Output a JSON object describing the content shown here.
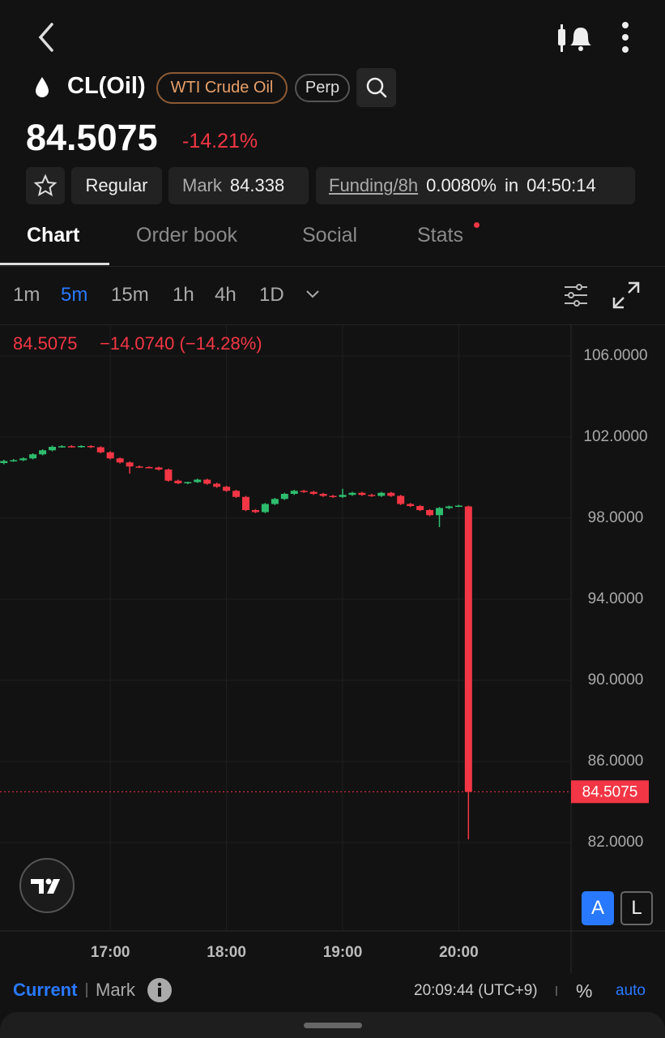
{
  "top": {
    "symbol": "CL(Oil)",
    "name": "WTI Crude Oil",
    "tag": "Perp",
    "price": "84.5075",
    "change": "-14.21%"
  },
  "info": {
    "session": "Regular",
    "mark_label": "Mark",
    "mark_value": "84.338",
    "funding_label": "Funding/8h",
    "funding_value": "0.0080%",
    "in": "in",
    "countdown": "04:50:14"
  },
  "tabs": [
    "Chart",
    "Order book",
    "Social",
    "Stats"
  ],
  "intervals": [
    "1m",
    "5m",
    "15m",
    "1h",
    "4h",
    "1D"
  ],
  "scale_buttons": [
    "A",
    "L"
  ],
  "footer": {
    "current": "Current",
    "mark": "Mark",
    "time": "20:09:44 (UTC+9)",
    "percent": "%",
    "auto": "auto"
  },
  "chart_data": {
    "type": "candlestick",
    "legend": {
      "price": "84.5075",
      "change": "−14.0740 (−14.28%)"
    },
    "up_color": "#2ebd6e",
    "down_color": "#f23645",
    "grid": true,
    "last_price": 84.5075,
    "last_price_color": "#f23645",
    "x": [
      "16:05",
      "16:10",
      "16:15",
      "16:20",
      "16:25",
      "16:30",
      "16:35",
      "16:40",
      "16:45",
      "16:50",
      "16:55",
      "17:00",
      "17:05",
      "17:10",
      "17:15",
      "17:20",
      "17:25",
      "17:30",
      "17:35",
      "17:40",
      "17:45",
      "17:50",
      "17:55",
      "18:00",
      "18:05",
      "18:10",
      "18:15",
      "18:20",
      "18:25",
      "18:30",
      "18:35",
      "18:40",
      "18:45",
      "18:50",
      "18:55",
      "19:00",
      "19:05",
      "19:10",
      "19:15",
      "19:20",
      "19:25",
      "19:30",
      "19:35",
      "19:40",
      "19:45",
      "19:50",
      "19:55",
      "20:00",
      "20:05"
    ],
    "open": [
      100.72,
      100.82,
      100.86,
      100.95,
      101.15,
      101.35,
      101.52,
      101.55,
      101.52,
      101.56,
      101.5,
      101.25,
      100.95,
      100.75,
      100.55,
      100.52,
      100.5,
      100.4,
      99.85,
      99.72,
      99.78,
      99.9,
      99.7,
      99.55,
      99.35,
      99.05,
      98.4,
      98.3,
      98.7,
      98.95,
      99.2,
      99.35,
      99.3,
      99.2,
      99.1,
      99.05,
      99.15,
      99.25,
      99.15,
      99.1,
      99.25,
      99.1,
      98.7,
      98.6,
      98.4,
      98.15,
      98.5,
      98.58,
      98.58
    ],
    "high": [
      100.88,
      100.92,
      101.0,
      101.2,
      101.4,
      101.58,
      101.6,
      101.6,
      101.6,
      101.6,
      101.55,
      101.3,
      101.0,
      100.8,
      100.6,
      100.56,
      100.54,
      100.45,
      99.9,
      99.8,
      99.95,
      99.95,
      99.75,
      99.6,
      99.4,
      99.1,
      98.45,
      98.75,
      99.0,
      99.25,
      99.4,
      99.4,
      99.35,
      99.25,
      99.15,
      99.45,
      99.3,
      99.3,
      99.2,
      99.3,
      99.3,
      99.15,
      98.75,
      98.65,
      98.45,
      98.55,
      98.62,
      98.66,
      98.62
    ],
    "low": [
      100.66,
      100.78,
      100.82,
      100.9,
      101.1,
      101.3,
      101.48,
      101.48,
      101.48,
      101.46,
      101.2,
      100.9,
      100.7,
      100.2,
      100.48,
      100.46,
      100.35,
      99.8,
      99.68,
      99.68,
      99.74,
      99.65,
      99.5,
      99.3,
      99.0,
      98.35,
      98.25,
      98.25,
      98.65,
      98.9,
      99.15,
      99.25,
      99.15,
      99.05,
      99.0,
      99.0,
      99.1,
      99.1,
      99.05,
      99.05,
      99.05,
      98.65,
      98.55,
      98.35,
      98.1,
      97.56,
      98.45,
      98.55,
      82.16
    ],
    "close": [
      100.82,
      100.86,
      100.95,
      101.15,
      101.35,
      101.52,
      101.55,
      101.52,
      101.56,
      101.5,
      101.25,
      100.95,
      100.75,
      100.55,
      100.52,
      100.5,
      100.4,
      99.85,
      99.72,
      99.78,
      99.9,
      99.7,
      99.55,
      99.35,
      99.05,
      98.4,
      98.3,
      98.7,
      98.95,
      99.2,
      99.35,
      99.3,
      99.2,
      99.1,
      99.05,
      99.15,
      99.25,
      99.15,
      99.1,
      99.25,
      99.1,
      98.7,
      98.6,
      98.4,
      98.15,
      98.5,
      98.58,
      98.62,
      84.5075
    ],
    "xlim": [
      "16:03",
      "20:58"
    ],
    "xticks": [
      "17:00",
      "18:00",
      "19:00",
      "20:00"
    ],
    "ylim": [
      77.64,
      107.56
    ],
    "yticks": [
      {
        "value": 82,
        "label": "82.0000"
      },
      {
        "value": 86,
        "label": "86.0000"
      },
      {
        "value": 90,
        "label": "90.0000"
      },
      {
        "value": 94,
        "label": "94.0000"
      },
      {
        "value": 98,
        "label": "98.0000"
      },
      {
        "value": 102,
        "label": "102.0000"
      },
      {
        "value": 106,
        "label": "106.0000"
      }
    ]
  }
}
